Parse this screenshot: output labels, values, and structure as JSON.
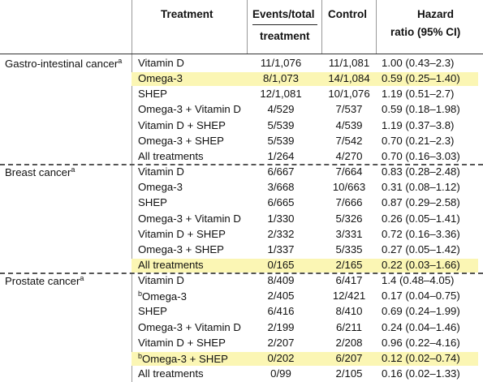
{
  "header": {
    "treatment": "Treatment",
    "events_line1": "Events/total",
    "events_line2": "treatment",
    "control": "Control",
    "hr_line1": "Hazard",
    "hr_line2": "ratio (95% CI)"
  },
  "highlight_color": "#fbf6b4",
  "groups": [
    {
      "cancer": "Gastro-intestinal cancer",
      "footnote": "a",
      "rows": [
        {
          "treatment": "Vitamin D",
          "events": "11/1,076",
          "control": "11/1,081",
          "hr": "1.00 (0.43–2.3)",
          "highlight": false
        },
        {
          "treatment": "Omega-3",
          "events": "8/1,073",
          "control": "14/1,084",
          "hr": "0.59 (0.25–1.40)",
          "highlight": true
        },
        {
          "treatment": "SHEP",
          "events": "12/1,081",
          "control": "10/1,076",
          "hr": "1.19 (0.51–2.7)",
          "highlight": false
        },
        {
          "treatment": "Omega-3 + Vitamin D",
          "events": "4/529",
          "control": "7/537",
          "hr": "0.59 (0.18–1.98)",
          "highlight": false
        },
        {
          "treatment": "Vitamin D + SHEP",
          "events": "5/539",
          "control": "4/539",
          "hr": "1.19 (0.37–3.8)",
          "highlight": false
        },
        {
          "treatment": "Omega-3 + SHEP",
          "events": "5/539",
          "control": "7/542",
          "hr": "0.70 (0.21–2.3)",
          "highlight": false
        },
        {
          "treatment": "All treatments",
          "events": "1/264",
          "control": "4/270",
          "hr": "0.70 (0.16–3.03)",
          "highlight": false
        }
      ]
    },
    {
      "cancer": "Breast cancer",
      "footnote": "a",
      "rows": [
        {
          "treatment": "Vitamin D",
          "events": "6/667",
          "control": "7/664",
          "hr": "0.83 (0.28–2.48)",
          "highlight": false
        },
        {
          "treatment": "Omega-3",
          "events": "3/668",
          "control": "10/663",
          "hr": "0.31 (0.08–1.12)",
          "highlight": false
        },
        {
          "treatment": "SHEP",
          "events": "6/665",
          "control": "7/666",
          "hr": "0.87 (0.29–2.58)",
          "highlight": false
        },
        {
          "treatment": "Omega-3 + Vitamin D",
          "events": "1/330",
          "control": "5/326",
          "hr": "0.26 (0.05–1.41)",
          "highlight": false
        },
        {
          "treatment": "Vitamin D + SHEP",
          "events": "2/332",
          "control": "3/331",
          "hr": "0.72 (0.16–3.36)",
          "highlight": false
        },
        {
          "treatment": "Omega-3 + SHEP",
          "events": "1/337",
          "control": "5/335",
          "hr": "0.27 (0.05–1.42)",
          "highlight": false
        },
        {
          "treatment": "All treatments",
          "events": "0/165",
          "control": "2/165",
          "hr": "0.22 (0.03–1.66)",
          "highlight": true
        }
      ]
    },
    {
      "cancer": "Prostate cancer",
      "footnote": "a",
      "rows": [
        {
          "treatment": "Vitamin D",
          "events": "8/409",
          "control": "6/417",
          "hr": "1.4 (0.48–4.05)",
          "highlight": false
        },
        {
          "treatment": "Omega-3",
          "treatment_footnote": "b",
          "events": "2/405",
          "control": "12/421",
          "hr": "0.17 (0.04–0.75)",
          "highlight": false
        },
        {
          "treatment": "SHEP",
          "events": "6/416",
          "control": "8/410",
          "hr": "0.69 (0.24–1.99)",
          "highlight": false
        },
        {
          "treatment": "Omega-3 + Vitamin D",
          "events": "2/199",
          "control": "6/211",
          "hr": "0.24 (0.04–1.46)",
          "highlight": false
        },
        {
          "treatment": "Vitamin D + SHEP",
          "events": "2/207",
          "control": "2/208",
          "hr": "0.96 (0.22–4.16)",
          "highlight": false
        },
        {
          "treatment": "Omega-3 + SHEP",
          "treatment_footnote": "b",
          "events": "0/202",
          "control": "6/207",
          "hr": "0.12 (0.02–0.74)",
          "highlight": true
        },
        {
          "treatment": "All treatments",
          "events": "0/99",
          "control": "2/105",
          "hr": "0.16 (0.02–1.33)",
          "highlight": false
        }
      ]
    }
  ]
}
